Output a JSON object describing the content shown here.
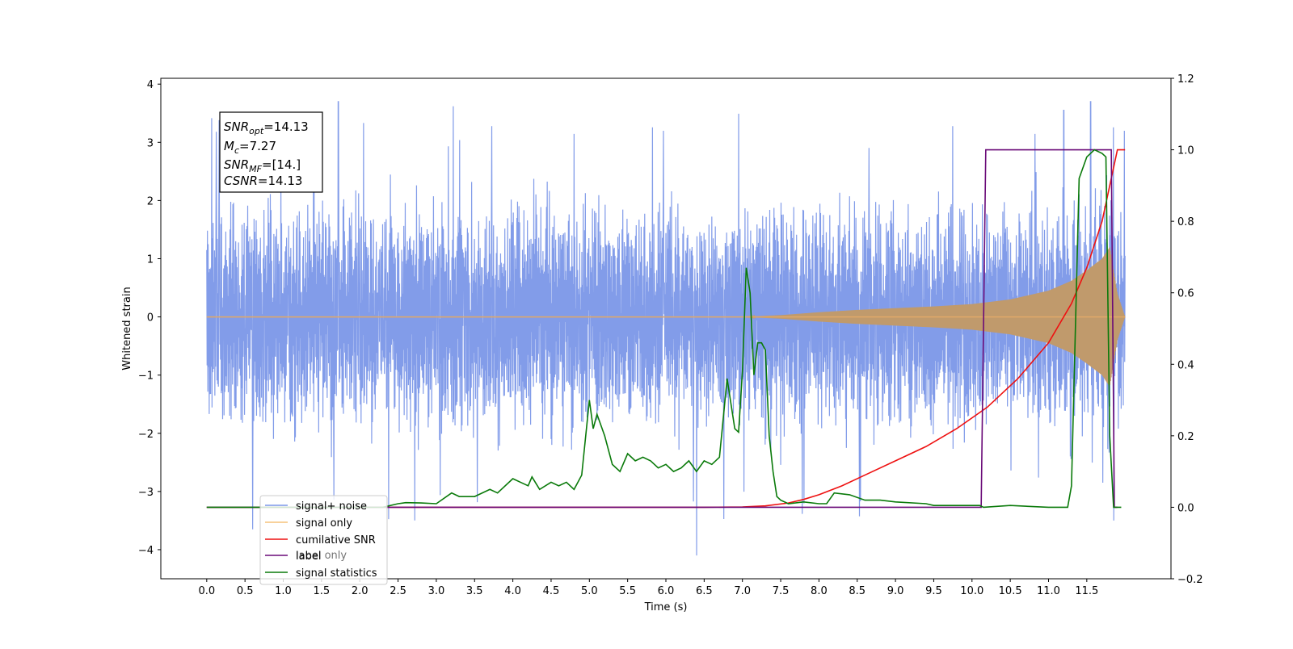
{
  "chart_data": {
    "type": "line",
    "xlabel": "Time (s)",
    "ylabel": "Whitened strain",
    "xlim": [
      -0.6,
      12.6
    ],
    "ylim": [
      -4.5,
      4.1
    ],
    "y2lim": [
      -0.2,
      1.2
    ],
    "x_ticks": [
      "0.0",
      "0.5",
      "1.0",
      "1.5",
      "2.0",
      "2.5",
      "3.0",
      "3.5",
      "4.0",
      "4.5",
      "5.0",
      "5.5",
      "6.0",
      "6.5",
      "7.0",
      "7.5",
      "8.0",
      "8.5",
      "9.0",
      "9.5",
      "10.0",
      "10.5",
      "11.0",
      "11.5"
    ],
    "y_ticks": [
      "4",
      "3",
      "2",
      "1",
      "0",
      "−1",
      "−2",
      "−3",
      "−4"
    ],
    "y2_ticks": [
      "1.2",
      "1.0",
      "0.8",
      "0.6",
      "0.4",
      "0.2",
      "0.0",
      "−0.2"
    ],
    "grid": false,
    "legend_position": "lower-left",
    "annotation": {
      "snr_opt_sym": "SNR",
      "snr_opt_sub": "opt",
      "snr_opt_val": "=14.13",
      "mc_sym": "M",
      "mc_sub": "c",
      "mc_val": "=7.27",
      "snr_mf_sym": "SNR",
      "snr_mf_sub": "MF",
      "snr_mf_val": "=[14.]",
      "csnr_sym": "CSNR",
      "csnr_val": "=14.13"
    },
    "series": [
      {
        "name": "signal+ noise",
        "color": "#7b97e8",
        "axis": "left",
        "note_x_range": [
          0.0,
          12.0
        ],
        "noise_envelope": [
          -3.6,
          3.7
        ],
        "peaks": [
          [
            0.6,
            -3.65
          ],
          [
            1.72,
            3.7
          ],
          [
            3.22,
            3.62
          ],
          [
            6.4,
            -4.1
          ],
          [
            11.2,
            3.55
          ],
          [
            11.55,
            3.7
          ],
          [
            11.85,
            -3.5
          ]
        ]
      },
      {
        "name": "signal only",
        "color": "#e0a868",
        "axis": "left",
        "envelope_t": [
          0.0,
          7.0,
          7.5,
          8.0,
          8.5,
          9.0,
          9.5,
          10.0,
          10.5,
          11.0,
          11.3,
          11.5,
          11.7,
          11.8,
          11.9,
          12.0
        ],
        "envelope_a": [
          0.0,
          0.0,
          0.03,
          0.08,
          0.12,
          0.15,
          0.18,
          0.22,
          0.3,
          0.45,
          0.62,
          0.8,
          1.0,
          1.2,
          0.4,
          0.0
        ]
      },
      {
        "name": "cumilative SNR",
        "color": "#ee1111",
        "axis": "right",
        "x": [
          0.0,
          6.5,
          7.0,
          7.3,
          7.6,
          7.8,
          8.0,
          8.3,
          8.6,
          9.0,
          9.4,
          9.8,
          10.2,
          10.6,
          11.0,
          11.3,
          11.5,
          11.7,
          11.8,
          11.9,
          12.0
        ],
        "y": [
          0.0,
          0.0,
          0.001,
          0.004,
          0.012,
          0.022,
          0.035,
          0.06,
          0.09,
          0.13,
          0.17,
          0.22,
          0.28,
          0.36,
          0.46,
          0.57,
          0.67,
          0.8,
          0.9,
          1.0,
          1.0
        ]
      },
      {
        "name": "label",
        "color": "#6a0a78",
        "axis": "right",
        "x": [
          0.0,
          10.12,
          10.18,
          11.82,
          11.86,
          11.9
        ],
        "y": [
          0.0,
          0.0,
          1.0,
          1.0,
          0.0,
          0.0
        ]
      },
      {
        "name": "signal statistics",
        "color": "#0a7a0a",
        "axis": "right",
        "x": [
          0.0,
          2.3,
          2.5,
          2.6,
          2.8,
          3.0,
          3.2,
          3.3,
          3.5,
          3.7,
          3.8,
          4.0,
          4.1,
          4.2,
          4.25,
          4.35,
          4.5,
          4.6,
          4.7,
          4.8,
          4.9,
          5.0,
          5.05,
          5.1,
          5.2,
          5.3,
          5.4,
          5.5,
          5.6,
          5.7,
          5.8,
          5.9,
          6.0,
          6.1,
          6.2,
          6.3,
          6.4,
          6.5,
          6.6,
          6.7,
          6.8,
          6.85,
          6.9,
          6.95,
          7.0,
          7.05,
          7.1,
          7.15,
          7.2,
          7.25,
          7.3,
          7.35,
          7.4,
          7.45,
          7.5,
          7.6,
          7.8,
          8.0,
          8.1,
          8.2,
          8.4,
          8.6,
          8.8,
          9.0,
          9.4,
          9.5,
          9.7,
          10.0,
          10.1,
          10.15,
          10.5,
          11.0,
          11.2,
          11.25,
          11.3,
          11.4,
          11.5,
          11.6,
          11.7,
          11.75,
          11.8,
          11.85,
          11.9,
          11.95
        ],
        "y": [
          0.0,
          0.0,
          0.01,
          0.013,
          0.012,
          0.01,
          0.04,
          0.03,
          0.03,
          0.05,
          0.04,
          0.08,
          0.07,
          0.06,
          0.085,
          0.05,
          0.07,
          0.06,
          0.07,
          0.05,
          0.09,
          0.3,
          0.22,
          0.26,
          0.2,
          0.12,
          0.1,
          0.15,
          0.13,
          0.14,
          0.13,
          0.11,
          0.12,
          0.1,
          0.11,
          0.13,
          0.1,
          0.13,
          0.12,
          0.14,
          0.36,
          0.29,
          0.22,
          0.21,
          0.38,
          0.67,
          0.6,
          0.37,
          0.46,
          0.46,
          0.44,
          0.2,
          0.1,
          0.03,
          0.02,
          0.01,
          0.015,
          0.01,
          0.01,
          0.04,
          0.035,
          0.02,
          0.02,
          0.015,
          0.01,
          0.005,
          0.005,
          0.005,
          0.005,
          0.0,
          0.005,
          0.0,
          0.0,
          0.0,
          0.06,
          0.92,
          0.98,
          1.0,
          0.99,
          0.98,
          0.2,
          0.0,
          0.0,
          0.0
        ]
      },
      {
        "name": "label only",
        "color": "#aaaaaa",
        "axis": "right",
        "hidden_behind_legend": true
      }
    ]
  },
  "legend": {
    "signal_noise": "signal+ noise",
    "signal_only": "signal only",
    "cum_snr": "cumilative SNR",
    "label": "label",
    "label_only": "label only",
    "signal_stats": "signal statistics"
  }
}
